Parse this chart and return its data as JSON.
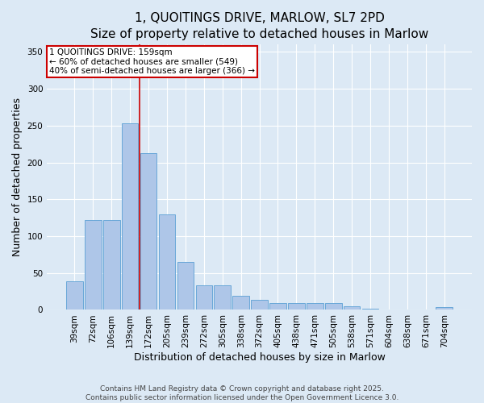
{
  "title": "1, QUOITINGS DRIVE, MARLOW, SL7 2PD",
  "subtitle": "Size of property relative to detached houses in Marlow",
  "xlabel": "Distribution of detached houses by size in Marlow",
  "ylabel": "Number of detached properties",
  "bar_labels": [
    "39sqm",
    "72sqm",
    "106sqm",
    "139sqm",
    "172sqm",
    "205sqm",
    "239sqm",
    "272sqm",
    "305sqm",
    "338sqm",
    "372sqm",
    "405sqm",
    "438sqm",
    "471sqm",
    "505sqm",
    "538sqm",
    "571sqm",
    "604sqm",
    "638sqm",
    "671sqm",
    "704sqm"
  ],
  "bar_values": [
    39,
    122,
    122,
    253,
    213,
    130,
    65,
    33,
    33,
    19,
    14,
    9,
    9,
    9,
    9,
    5,
    2,
    1,
    1,
    0,
    4
  ],
  "bar_color": "#aec6e8",
  "bar_edgecolor": "#5a9fd4",
  "vline_position": 3.5,
  "vline_color": "#cc0000",
  "annotation_text": "1 QUOITINGS DRIVE: 159sqm\n← 60% of detached houses are smaller (549)\n40% of semi-detached houses are larger (366) →",
  "annotation_box_color": "#cc0000",
  "ylim": [
    0,
    360
  ],
  "yticks": [
    0,
    50,
    100,
    150,
    200,
    250,
    300,
    350
  ],
  "background_color": "#dce9f5",
  "footer_text": "Contains HM Land Registry data © Crown copyright and database right 2025.\nContains public sector information licensed under the Open Government Licence 3.0.",
  "title_fontsize": 11,
  "tick_fontsize": 7.5,
  "ylabel_fontsize": 9,
  "xlabel_fontsize": 9,
  "footer_fontsize": 6.5
}
